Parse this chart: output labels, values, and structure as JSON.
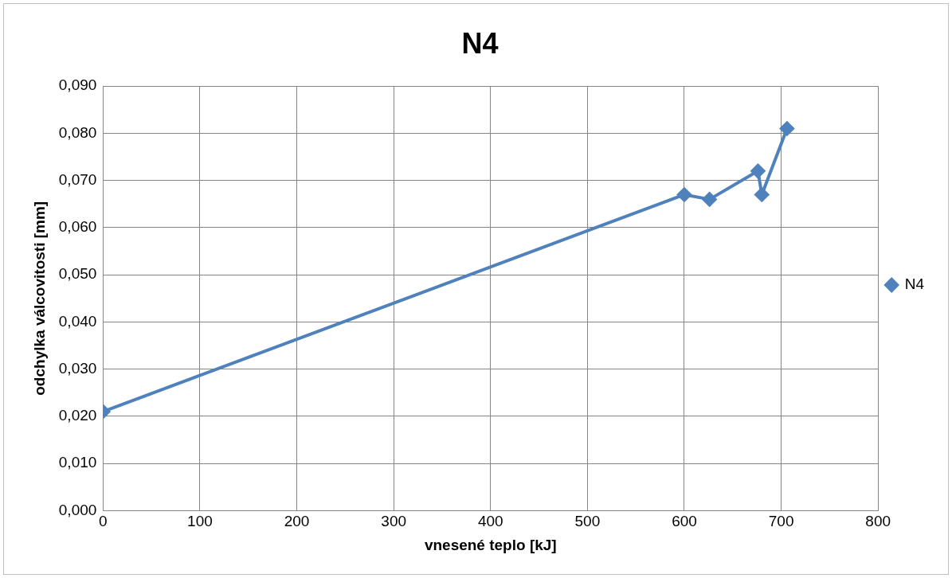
{
  "chart_data": {
    "type": "line",
    "title": "N4",
    "xlabel": "vnesené teplo [kJ]",
    "ylabel": "odchylka válcovitosti [mm]",
    "x": [
      0,
      600,
      626,
      676,
      680,
      706
    ],
    "series": [
      {
        "name": "N4",
        "color": "#4f81bd",
        "values": [
          0.021,
          0.067,
          0.066,
          0.072,
          0.067,
          0.081
        ]
      }
    ],
    "xlim": [
      0,
      800
    ],
    "xticks": [
      0,
      100,
      200,
      300,
      400,
      500,
      600,
      700,
      800
    ],
    "ylim": [
      0,
      0.09
    ],
    "yticks": [
      {
        "value": 0,
        "label": "0,000"
      },
      {
        "value": 0.01,
        "label": "0,010"
      },
      {
        "value": 0.02,
        "label": "0,020"
      },
      {
        "value": 0.03,
        "label": "0,030"
      },
      {
        "value": 0.04,
        "label": "0,040"
      },
      {
        "value": 0.05,
        "label": "0,050"
      },
      {
        "value": 0.06,
        "label": "0,060"
      },
      {
        "value": 0.07,
        "label": "0,070"
      },
      {
        "value": 0.08,
        "label": "0,080"
      },
      {
        "value": 0.09,
        "label": "0,090"
      }
    ],
    "grid": true,
    "legend": "right",
    "marker": "diamond",
    "line_style": "solid"
  }
}
